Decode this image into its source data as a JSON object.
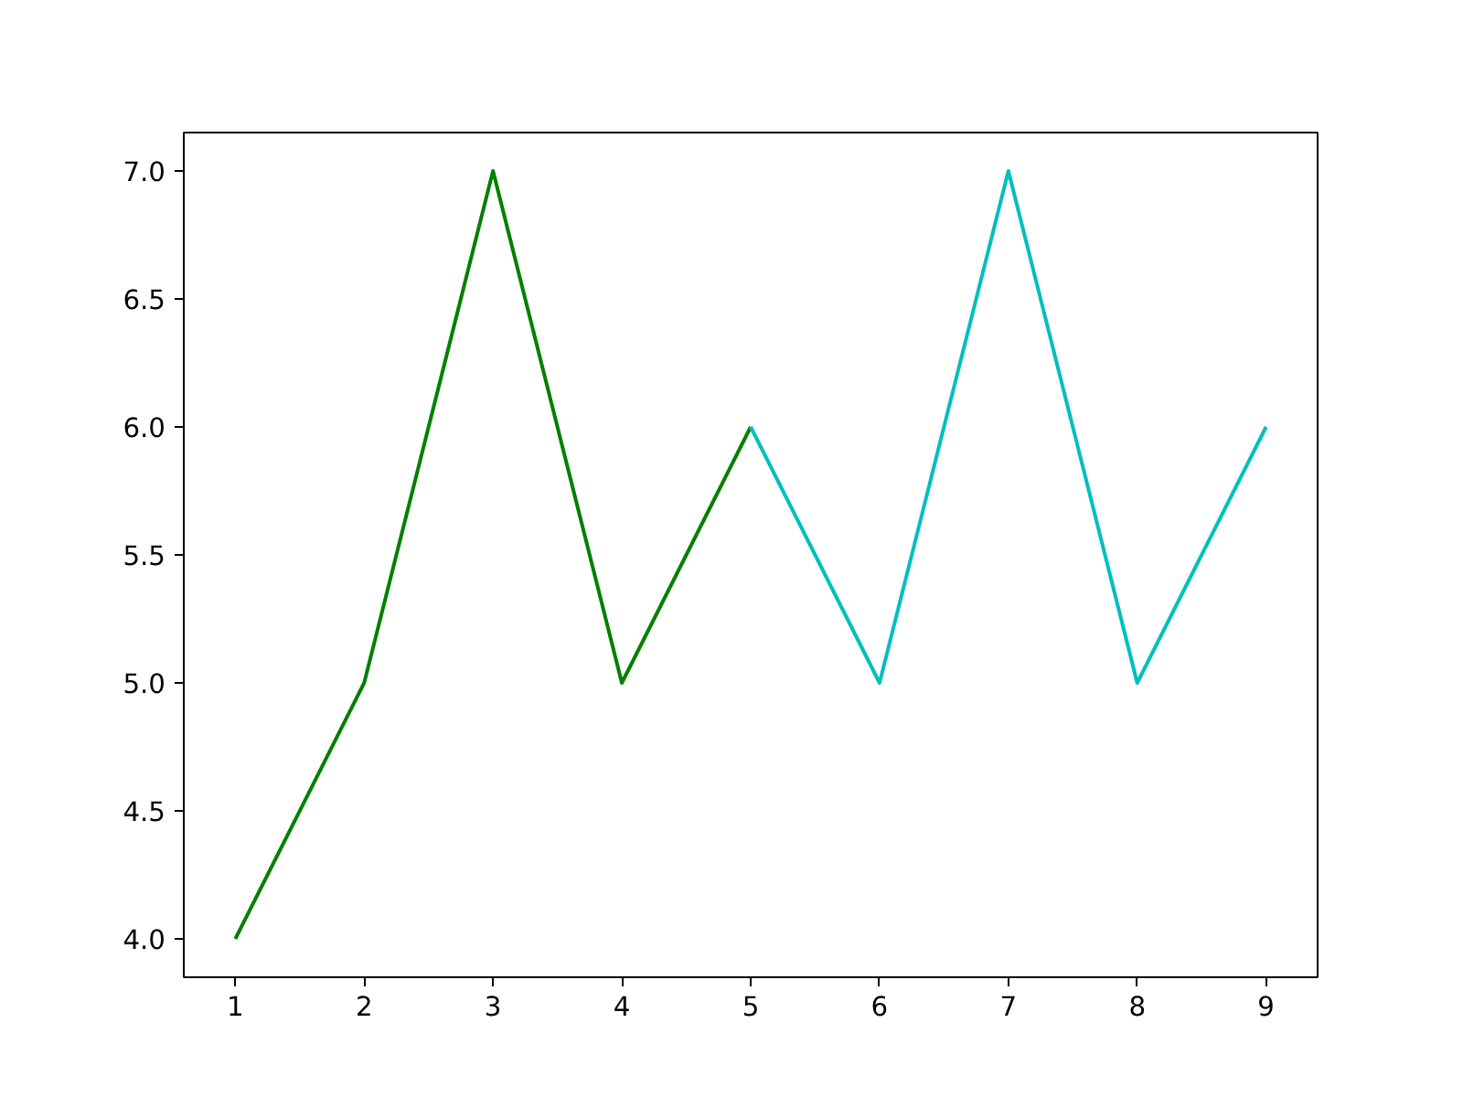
{
  "chart_data": {
    "type": "line",
    "series": [
      {
        "color": "#008000",
        "x": [
          1,
          2,
          3,
          4,
          5
        ],
        "values": [
          4,
          5,
          7,
          5,
          6
        ]
      },
      {
        "color": "#00bfbf",
        "x": [
          5,
          6,
          7,
          8,
          9
        ],
        "values": [
          6,
          5,
          7,
          5,
          6
        ]
      }
    ],
    "xlim": [
      0.6,
      9.4
    ],
    "xticks": [
      1,
      2,
      3,
      4,
      5,
      6,
      7,
      8,
      9
    ],
    "ylim": [
      3.85,
      7.15
    ],
    "yticks": [
      {
        "value": 4,
        "label": "4.0"
      },
      {
        "value": 4.5,
        "label": "4.5"
      },
      {
        "value": 5,
        "label": "5.0"
      },
      {
        "value": 5.5,
        "label": "5.5"
      },
      {
        "value": 6,
        "label": "6.0"
      },
      {
        "value": 6.5,
        "label": "6.5"
      },
      {
        "value": 7,
        "label": "7.0"
      }
    ],
    "grid": false,
    "line_style": "solid",
    "marker": "none"
  }
}
